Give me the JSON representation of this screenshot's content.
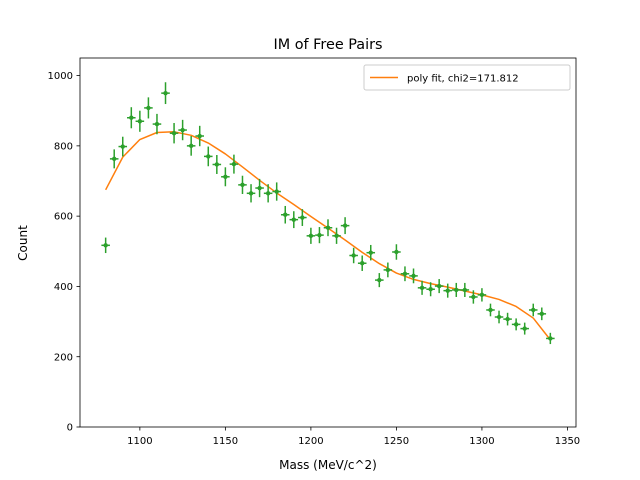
{
  "chart_data": {
    "type": "scatter",
    "title": "IM of Free Pairs",
    "xlabel": "Mass (MeV/c^2)",
    "ylabel": "Count",
    "xlim": [
      1065,
      1355
    ],
    "ylim": [
      0,
      1050
    ],
    "xticks": [
      1100,
      1150,
      1200,
      1250,
      1300,
      1350
    ],
    "yticks": [
      0,
      200,
      400,
      600,
      800,
      1000
    ],
    "grid": false,
    "legend": {
      "placement": "top-right",
      "entries": [
        "poly fit, chi2=171.812"
      ]
    },
    "colors": {
      "data": "#2ca02c",
      "fit": "#ff7f0e"
    },
    "x_bin_halfwidth": 2.5,
    "series": [
      {
        "kind": "points-with-errorbars",
        "x": [
          1080,
          1085,
          1090,
          1095,
          1100,
          1105,
          1110,
          1115,
          1120,
          1125,
          1130,
          1135,
          1140,
          1145,
          1150,
          1155,
          1160,
          1165,
          1170,
          1175,
          1180,
          1185,
          1190,
          1195,
          1200,
          1205,
          1210,
          1215,
          1220,
          1225,
          1230,
          1235,
          1240,
          1245,
          1250,
          1255,
          1260,
          1265,
          1270,
          1275,
          1280,
          1285,
          1290,
          1295,
          1300,
          1305,
          1310,
          1315,
          1320,
          1325,
          1330,
          1335,
          1340
        ],
        "y": [
          517,
          763,
          798,
          880,
          870,
          908,
          862,
          950,
          836,
          845,
          800,
          828,
          770,
          747,
          712,
          748,
          689,
          665,
          680,
          665,
          670,
          604,
          590,
          596,
          544,
          546,
          567,
          544,
          573,
          488,
          466,
          496,
          418,
          447,
          498,
          436,
          430,
          396,
          392,
          401,
          388,
          390,
          390,
          370,
          376,
          333,
          313,
          307,
          292,
          280,
          333,
          322,
          252
        ],
        "yerr": [
          22,
          27,
          28,
          30,
          30,
          30,
          29,
          31,
          29,
          29,
          28,
          29,
          28,
          27,
          27,
          27,
          26,
          26,
          26,
          26,
          26,
          25,
          24,
          24,
          23,
          23,
          24,
          23,
          24,
          22,
          22,
          22,
          20,
          21,
          22,
          21,
          21,
          20,
          20,
          20,
          20,
          20,
          20,
          19,
          19,
          18,
          18,
          18,
          17,
          17,
          18,
          18,
          16
        ]
      },
      {
        "name": "poly fit, chi2=171.812",
        "kind": "line",
        "x": [
          1080,
          1090,
          1100,
          1110,
          1120,
          1130,
          1140,
          1150,
          1160,
          1170,
          1180,
          1190,
          1200,
          1210,
          1220,
          1230,
          1240,
          1250,
          1260,
          1270,
          1280,
          1290,
          1300,
          1310,
          1320,
          1330,
          1340
        ],
        "y": [
          675,
          768,
          818,
          838,
          840,
          830,
          808,
          777,
          740,
          702,
          666,
          633,
          599,
          566,
          532,
          497,
          465,
          438,
          420,
          408,
          398,
          387,
          376,
          363,
          343,
          310,
          248
        ]
      }
    ]
  }
}
